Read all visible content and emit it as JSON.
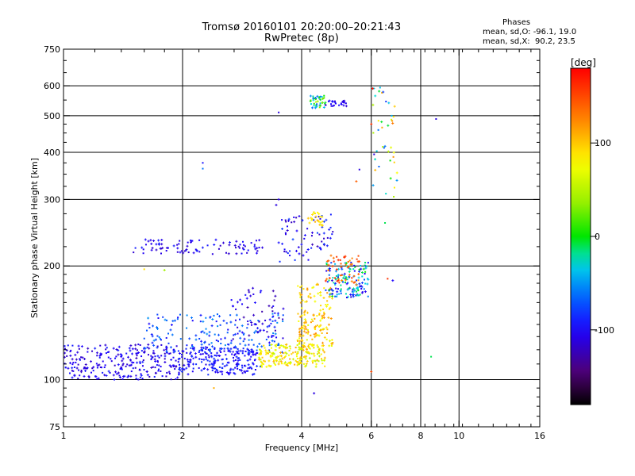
{
  "header": {
    "title": "Tromsø 20160101 20:20:00–20:21:43",
    "subtitle": "RwPretec (8p)"
  },
  "phase_box": {
    "title": "Phases",
    "line_o": "mean, sd,O: -96.1, 19.0",
    "line_x": "mean, sd,X:  90.2, 23.5"
  },
  "colorbar": {
    "unit": "[deg]",
    "tick_labels": [
      "100",
      "0",
      "-100"
    ],
    "tick_values": [
      100,
      0,
      -100
    ],
    "range": [
      -180,
      180
    ]
  },
  "chart_data": {
    "type": "scatter",
    "title": "Tromsø 20160101 20:20:00–20:21:43",
    "subtitle": "RwPretec (8p)",
    "xlabel": "Frequency [MHz]",
    "ylabel": "Stationary phase Virtual Height [km]",
    "xscale": "log",
    "yscale": "log",
    "xlim": [
      1,
      16
    ],
    "ylim": [
      75,
      750
    ],
    "x_ticks": [
      1,
      2,
      4,
      6,
      8,
      10,
      16
    ],
    "x_tick_labels": [
      "1",
      "2",
      "4",
      "6",
      "8",
      "10",
      "16"
    ],
    "y_ticks": [
      75,
      100,
      200,
      300,
      400,
      500,
      600,
      750
    ],
    "y_tick_labels": [
      "75",
      "100",
      "200",
      "300",
      "400",
      "500",
      "600",
      "750"
    ],
    "x_grid": [
      2,
      4,
      6,
      8,
      10
    ],
    "y_grid": [
      100,
      200,
      300,
      400,
      500,
      600
    ],
    "color_encoding": "phase [deg]",
    "clusters": [
      {
        "freq": [
          1.0,
          1.95
        ],
        "height": [
          100,
          124
        ],
        "phase": -105,
        "spread": 16,
        "count": 260
      },
      {
        "freq": [
          1.95,
          3.15
        ],
        "height": [
          103,
          122
        ],
        "phase": -95,
        "spread": 14,
        "count": 230
      },
      {
        "freq": [
          1.6,
          3.6
        ],
        "height": [
          118,
          150
        ],
        "phase": -75,
        "spread": 25,
        "count": 170
      },
      {
        "freq": [
          3.1,
          4.6
        ],
        "height": [
          108,
          124
        ],
        "phase": 80,
        "spread": 30,
        "count": 200
      },
      {
        "freq": [
          3.9,
          4.8
        ],
        "height": [
          120,
          180
        ],
        "phase": 95,
        "spread": 30,
        "count": 160
      },
      {
        "freq": [
          4.6,
          5.9
        ],
        "height": [
          165,
          205
        ],
        "phase": -55,
        "spread": 60,
        "count": 140
      },
      {
        "freq": [
          4.6,
          5.6
        ],
        "height": [
          178,
          215
        ],
        "phase": 140,
        "spread": 25,
        "count": 50
      },
      {
        "freq": [
          1.5,
          3.2
        ],
        "height": [
          215,
          235
        ],
        "phase": -105,
        "spread": 15,
        "count": 90
      },
      {
        "freq": [
          3.5,
          4.8
        ],
        "height": [
          205,
          275
        ],
        "phase": -100,
        "spread": 25,
        "count": 70
      },
      {
        "freq": [
          4.15,
          4.55
        ],
        "height": [
          255,
          278
        ],
        "phase": 95,
        "spread": 20,
        "count": 25
      },
      {
        "freq": [
          4.2,
          4.6
        ],
        "height": [
          522,
          565
        ],
        "phase": -10,
        "spread": 60,
        "count": 40
      },
      {
        "freq": [
          4.6,
          5.2
        ],
        "height": [
          530,
          548
        ],
        "phase": -105,
        "spread": 12,
        "count": 25
      },
      {
        "freq": [
          6.0,
          7.0
        ],
        "height": [
          300,
          600
        ],
        "phase": 20,
        "spread": 110,
        "count": 40
      },
      {
        "freq": [
          2.6,
          3.6
        ],
        "height": [
          128,
          175
        ],
        "phase": -110,
        "spread": 20,
        "count": 60
      }
    ],
    "points": [
      {
        "x": 3.5,
        "y": 510,
        "phase": -110
      },
      {
        "x": 8.75,
        "y": 490,
        "phase": -110
      },
      {
        "x": 2.25,
        "y": 375,
        "phase": -95
      },
      {
        "x": 2.25,
        "y": 362,
        "phase": -60
      },
      {
        "x": 3.5,
        "y": 300,
        "phase": -110
      },
      {
        "x": 3.45,
        "y": 290,
        "phase": -110
      },
      {
        "x": 4.3,
        "y": 92,
        "phase": -110
      },
      {
        "x": 2.4,
        "y": 95,
        "phase": 110
      },
      {
        "x": 6.0,
        "y": 105,
        "phase": 150
      },
      {
        "x": 8.5,
        "y": 115,
        "phase": -10
      },
      {
        "x": 1.6,
        "y": 196,
        "phase": 90
      },
      {
        "x": 1.8,
        "y": 195,
        "phase": 40
      },
      {
        "x": 6.6,
        "y": 185,
        "phase": 160
      },
      {
        "x": 6.8,
        "y": 183,
        "phase": -100
      },
      {
        "x": 6.0,
        "y": 475,
        "phase": 160
      },
      {
        "x": 6.05,
        "y": 590,
        "phase": 175
      },
      {
        "x": 6.1,
        "y": 395,
        "phase": -110
      },
      {
        "x": 5.6,
        "y": 360,
        "phase": -110
      },
      {
        "x": 5.5,
        "y": 335,
        "phase": 140
      },
      {
        "x": 6.5,
        "y": 415,
        "phase": -60
      },
      {
        "x": 6.5,
        "y": 260,
        "phase": -10
      }
    ]
  }
}
